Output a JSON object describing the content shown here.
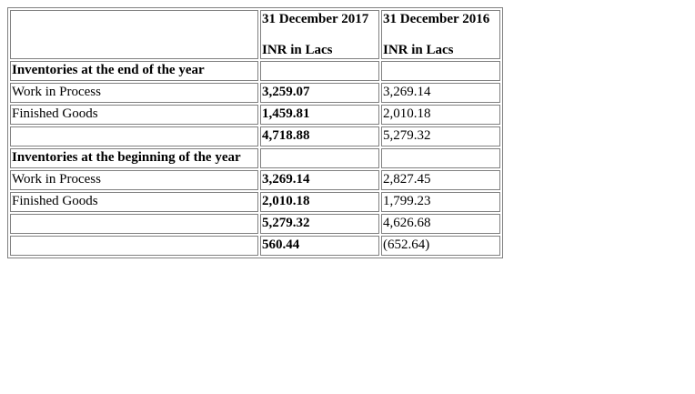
{
  "header": {
    "col2017_line1": "31 December 2017",
    "col2017_line2": "INR in Lacs",
    "col2016_line1": "31 December 2016",
    "col2016_line2": "INR in Lacs"
  },
  "end_section": {
    "title": "Inventories at the end of the year",
    "rows": [
      {
        "label": "Work in Process",
        "v2017": "3,259.07",
        "v2016": "3,269.14"
      },
      {
        "label": "Finished Goods",
        "v2017": "1,459.81",
        "v2016": "2,010.18"
      }
    ],
    "total": {
      "v2017": "4,718.88",
      "v2016": "5,279.32"
    }
  },
  "begin_section": {
    "title": "Inventories at the beginning of the year",
    "rows": [
      {
        "label": "Work in Process",
        "v2017": "3,269.14",
        "v2016": "2,827.45"
      },
      {
        "label": "Finished Goods",
        "v2017": "2,010.18",
        "v2016": "1,799.23"
      }
    ],
    "total": {
      "v2017": "5,279.32",
      "v2016": "4,626.68"
    }
  },
  "change": {
    "v2017": "560.44",
    "v2016": "(652.64)"
  }
}
